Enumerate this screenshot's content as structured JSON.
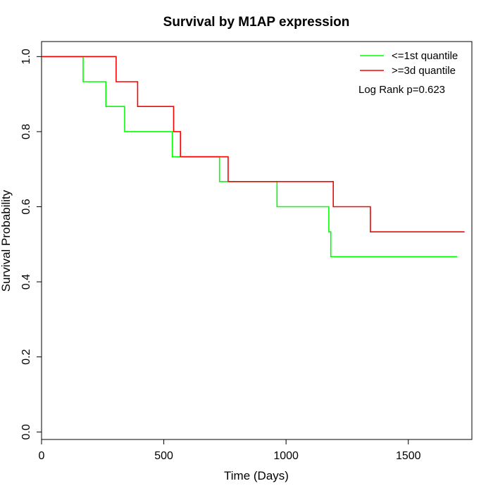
{
  "chart_data": {
    "type": "line",
    "title": "Survival by M1AP expression",
    "xlabel": "Time (Days)",
    "ylabel": "Survival Probability",
    "xlim": [
      0,
      1760
    ],
    "ylim": [
      -0.02,
      1.04
    ],
    "xticks": [
      0,
      500,
      1000,
      1500
    ],
    "yticks": [
      0.0,
      0.2,
      0.4,
      0.6,
      0.8,
      1.0
    ],
    "xtick_labels": [
      "0",
      "500",
      "1000",
      "1500"
    ],
    "ytick_labels": [
      "0.0",
      "0.2",
      "0.4",
      "0.6",
      "0.8",
      "1.0"
    ],
    "grid": false,
    "legend_position": "top-right",
    "annotation": "Log Rank p=0.623",
    "series": [
      {
        "name": "<=1st quantile",
        "color": "#00ff00",
        "step_points": [
          [
            0,
            1.0
          ],
          [
            170,
            1.0
          ],
          [
            170,
            0.933
          ],
          [
            263,
            0.933
          ],
          [
            263,
            0.867
          ],
          [
            340,
            0.867
          ],
          [
            340,
            0.8
          ],
          [
            535,
            0.8
          ],
          [
            535,
            0.733
          ],
          [
            728,
            0.733
          ],
          [
            728,
            0.667
          ],
          [
            963,
            0.667
          ],
          [
            963,
            0.6
          ],
          [
            1175,
            0.6
          ],
          [
            1175,
            0.533
          ],
          [
            1183,
            0.533
          ],
          [
            1183,
            0.467
          ],
          [
            1700,
            0.467
          ]
        ]
      },
      {
        "name": ">=3d quantile",
        "color": "#ff0000",
        "step_points": [
          [
            0,
            1.0
          ],
          [
            305,
            1.0
          ],
          [
            305,
            0.933
          ],
          [
            393,
            0.933
          ],
          [
            393,
            0.867
          ],
          [
            540,
            0.867
          ],
          [
            540,
            0.8
          ],
          [
            568,
            0.8
          ],
          [
            568,
            0.733
          ],
          [
            763,
            0.733
          ],
          [
            763,
            0.667
          ],
          [
            1193,
            0.667
          ],
          [
            1193,
            0.6
          ],
          [
            1345,
            0.6
          ],
          [
            1345,
            0.533
          ],
          [
            1730,
            0.533
          ]
        ]
      }
    ]
  }
}
